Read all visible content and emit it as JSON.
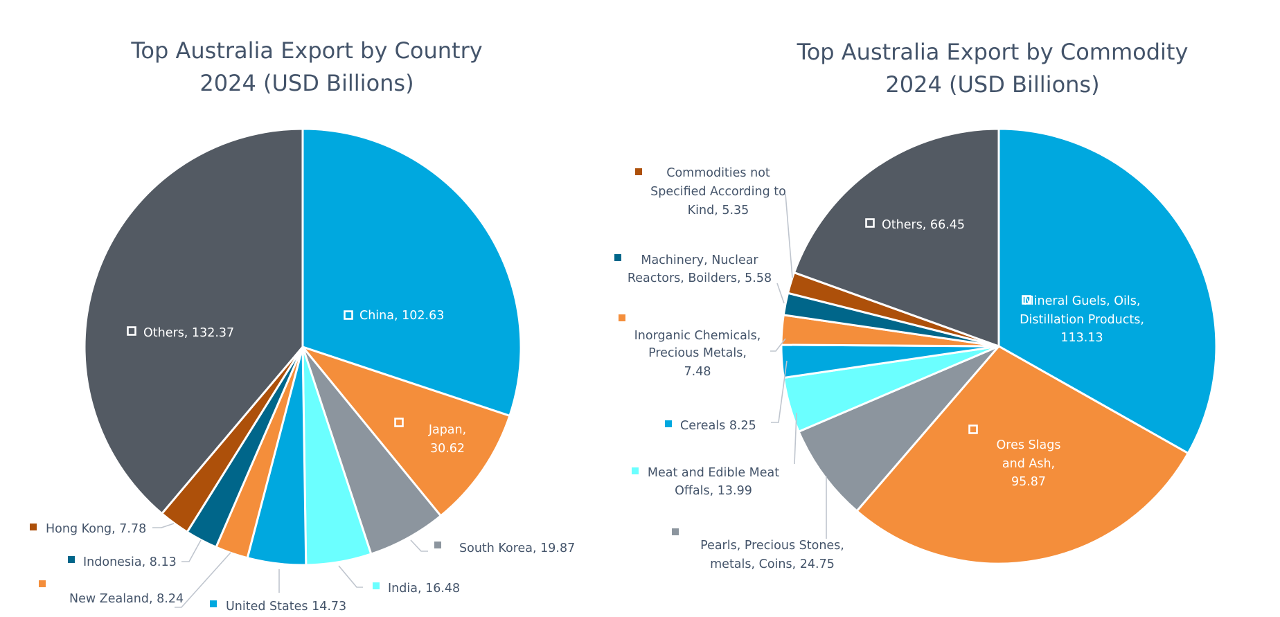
{
  "chart_data": [
    {
      "type": "pie",
      "title": [
        "Top Australia Export by Country",
        "2024  (USD Billions)"
      ],
      "units": "USD Billions",
      "start_angle": "top",
      "direction": "clockwise",
      "slices": [
        {
          "name": "China",
          "value": 102.63,
          "label": [
            "China, 102.63"
          ],
          "color": "#00A8DF",
          "label_position": "inside"
        },
        {
          "name": "Japan",
          "value": 30.62,
          "label": [
            "Japan,",
            "30.62"
          ],
          "color": "#F48E3B",
          "label_position": "inside"
        },
        {
          "name": "South Korea",
          "value": 19.87,
          "label": [
            "South Korea, 19.87"
          ],
          "color": "#8C959E",
          "label_position": "outside"
        },
        {
          "name": "India",
          "value": 16.48,
          "label": [
            "India, 16.48"
          ],
          "color": "#6BFFFF",
          "label_position": "outside"
        },
        {
          "name": "United States",
          "value": 14.73,
          "label": [
            "United States  14.73"
          ],
          "color": "#00A8DF",
          "label_position": "outside"
        },
        {
          "name": "New Zealand",
          "value": 8.24,
          "label": [
            "New Zealand, 8.24"
          ],
          "color": "#F48E3B",
          "label_position": "outside"
        },
        {
          "name": "Indonesia",
          "value": 8.13,
          "label": [
            "Indonesia, 8.13"
          ],
          "color": "#00668A",
          "label_position": "outside"
        },
        {
          "name": "Hong Kong",
          "value": 7.78,
          "label": [
            "Hong Kong, 7.78"
          ],
          "color": "#AD500A",
          "label_position": "outside"
        },
        {
          "name": "Others",
          "value": 132.37,
          "label": [
            "Others, 132.37"
          ],
          "color": "#535A63",
          "label_position": "inside"
        }
      ]
    },
    {
      "type": "pie",
      "title": [
        "Top Australia Export by Commodity",
        "2024 (USD Billions)"
      ],
      "units": "USD Billions",
      "start_angle": "top",
      "direction": "clockwise",
      "slices": [
        {
          "name": "Mineral Guels, Oils, Distillation Products",
          "value": 113.13,
          "label": [
            "Mineral Guels, Oils,",
            "Distillation Products,",
            "113.13"
          ],
          "color": "#00A8DF",
          "label_position": "inside"
        },
        {
          "name": "Ores Slags and Ash",
          "value": 95.87,
          "label": [
            "Ores Slags",
            "and Ash,",
            "95.87"
          ],
          "color": "#F48E3B",
          "label_position": "inside"
        },
        {
          "name": "Pearls, Precious Stones, metals, Coins",
          "value": 24.75,
          "label": [
            "Pearls, Precious Stones,",
            "metals, Coins, 24.75"
          ],
          "color": "#8C959E",
          "label_position": "outside"
        },
        {
          "name": "Meat and Edible Meat Offals",
          "value": 13.99,
          "label": [
            "Meat and Edible Meat",
            "Offals, 13.99"
          ],
          "color": "#6BFFFF",
          "label_position": "outside"
        },
        {
          "name": "Cereals",
          "value": 8.25,
          "label": [
            "Cereals  8.25"
          ],
          "color": "#00A8DF",
          "label_position": "outside"
        },
        {
          "name": "Inorganic Chemicals, Precious Metals",
          "value": 7.48,
          "label": [
            "Inorganic Chemicals,",
            "Precious Metals,",
            "7.48"
          ],
          "color": "#F48E3B",
          "label_position": "outside"
        },
        {
          "name": "Machinery, Nuclear Reactors, Boilders",
          "value": 5.58,
          "label": [
            "Machinery, Nuclear",
            "Reactors, Boilders, 5.58"
          ],
          "color": "#00668A",
          "label_position": "outside"
        },
        {
          "name": "Commodities not Specified According to Kind",
          "value": 5.35,
          "label": [
            "Commodities not",
            "Specified According to",
            "Kind, 5.35"
          ],
          "color": "#AD500A",
          "label_position": "outside"
        },
        {
          "name": "Others",
          "value": 66.45,
          "label": [
            "Others, 66.45"
          ],
          "color": "#535A63",
          "label_position": "inside"
        }
      ]
    }
  ]
}
